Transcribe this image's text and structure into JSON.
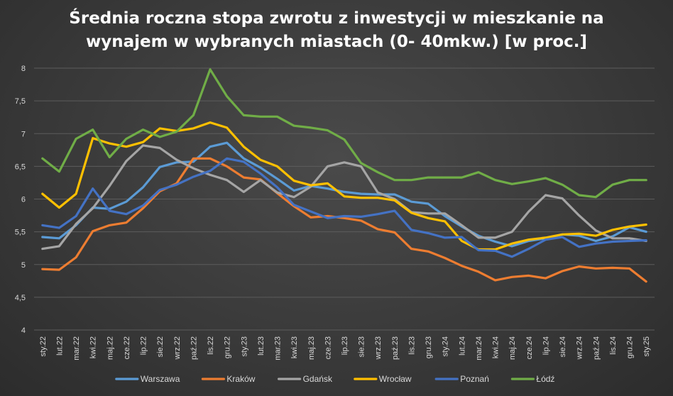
{
  "chart_data": {
    "type": "line",
    "title_line1": "Średnia roczna stopa zwrotu z inwestycji w mieszkanie na",
    "title_line2": "wynajem w wybranych miastach (0- 40mkw.) [w proc.]",
    "xlabel": "",
    "ylabel": "",
    "ylim": [
      4,
      8
    ],
    "yticks": [
      "4",
      "4,5",
      "5",
      "5,5",
      "6",
      "6,5",
      "7",
      "7,5",
      "8"
    ],
    "grid": true,
    "legend": "bottom",
    "categories": [
      "sty.22",
      "lut.22",
      "mar.22",
      "kwi.22",
      "maj.22",
      "cze.22",
      "lip.22",
      "sie.22",
      "wrz.22",
      "paź.22",
      "lis.22",
      "gru.22",
      "sty.23",
      "lut.23",
      "mar.23",
      "kwi.23",
      "maj.23",
      "cze.23",
      "lip.23",
      "sie.23",
      "wrz.23",
      "paź.23",
      "lis.23",
      "gru.23",
      "sty.24",
      "lut.24",
      "mar.24",
      "kwi.24",
      "maj.24",
      "cze.24",
      "lip.24",
      "sie.24",
      "wrz.24",
      "paź.24",
      "lis.24",
      "gru.24",
      "sty.25"
    ],
    "series": [
      {
        "name": "Warszawa",
        "color": "#5b9bd5",
        "values": [
          5.42,
          5.4,
          5.6,
          5.87,
          5.85,
          5.96,
          6.18,
          6.49,
          6.56,
          6.57,
          6.8,
          6.86,
          6.62,
          6.48,
          6.31,
          6.13,
          6.2,
          6.16,
          6.11,
          6.08,
          6.07,
          6.07,
          5.96,
          5.93,
          5.74,
          5.58,
          5.44,
          5.35,
          5.28,
          5.36,
          5.4,
          5.46,
          5.44,
          5.36,
          5.43,
          5.57,
          5.5
        ]
      },
      {
        "name": "Kraków",
        "color": "#ed7d31",
        "values": [
          4.93,
          4.92,
          5.11,
          5.51,
          5.6,
          5.64,
          5.86,
          6.12,
          6.24,
          6.62,
          6.62,
          6.5,
          6.33,
          6.3,
          6.09,
          5.89,
          5.72,
          5.74,
          5.71,
          5.67,
          5.54,
          5.49,
          5.24,
          5.2,
          5.1,
          4.98,
          4.89,
          4.76,
          4.81,
          4.83,
          4.79,
          4.9,
          4.97,
          4.94,
          4.95,
          4.94,
          4.74
        ]
      },
      {
        "name": "Gdańsk",
        "color": "#a5a5a5",
        "values": [
          5.24,
          5.28,
          5.62,
          5.86,
          6.2,
          6.58,
          6.82,
          6.78,
          6.6,
          6.47,
          6.37,
          6.29,
          6.11,
          6.29,
          6.1,
          6.03,
          6.19,
          6.5,
          6.56,
          6.5,
          6.1,
          6.0,
          5.8,
          5.78,
          5.78,
          5.6,
          5.41,
          5.41,
          5.5,
          5.81,
          6.06,
          6.01,
          5.75,
          5.52,
          5.4,
          5.4,
          5.36
        ]
      },
      {
        "name": "Wrocław",
        "color": "#ffc000",
        "values": [
          6.08,
          5.87,
          6.08,
          6.93,
          6.85,
          6.8,
          6.87,
          7.08,
          7.04,
          7.08,
          7.17,
          7.09,
          6.8,
          6.6,
          6.5,
          6.28,
          6.21,
          6.24,
          6.04,
          6.02,
          6.02,
          5.98,
          5.79,
          5.71,
          5.66,
          5.36,
          5.23,
          5.23,
          5.32,
          5.38,
          5.41,
          5.46,
          5.47,
          5.44,
          5.53,
          5.58,
          5.61
        ]
      },
      {
        "name": "Poznań",
        "color": "#4472c4",
        "values": [
          5.6,
          5.56,
          5.74,
          6.16,
          5.82,
          5.77,
          5.9,
          6.14,
          6.22,
          6.34,
          6.43,
          6.62,
          6.57,
          6.39,
          6.18,
          5.91,
          5.81,
          5.71,
          5.74,
          5.73,
          5.77,
          5.82,
          5.53,
          5.48,
          5.41,
          5.42,
          5.22,
          5.21,
          5.12,
          5.24,
          5.38,
          5.42,
          5.27,
          5.32,
          5.35,
          5.36,
          5.37
        ]
      },
      {
        "name": "Łódź",
        "color": "#70ad47",
        "values": [
          6.62,
          6.42,
          6.92,
          7.06,
          6.64,
          6.92,
          7.06,
          6.95,
          7.03,
          7.28,
          7.98,
          7.57,
          7.28,
          7.26,
          7.26,
          7.12,
          7.09,
          7.05,
          6.91,
          6.55,
          6.41,
          6.29,
          6.29,
          6.33,
          6.33,
          6.33,
          6.41,
          6.29,
          6.23,
          6.27,
          6.32,
          6.22,
          6.06,
          6.03,
          6.22,
          6.29,
          6.29
        ]
      }
    ]
  }
}
